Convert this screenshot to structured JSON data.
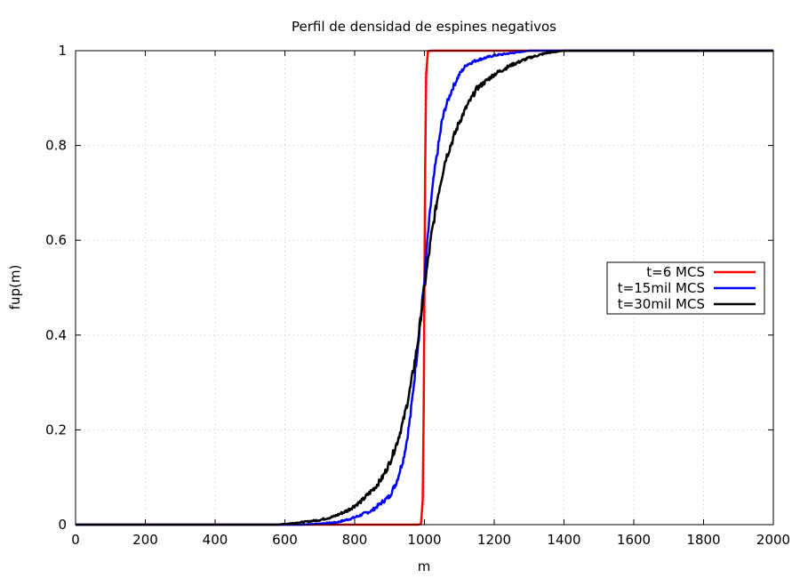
{
  "chart_data": {
    "type": "line",
    "title": "Perfil de densidad de espines negativos",
    "xlabel": "m",
    "ylabel": "fup(m)",
    "xlim": [
      0,
      2000
    ],
    "ylim": [
      0,
      1
    ],
    "x_ticks": [
      "0",
      "200",
      "400",
      "600",
      "800",
      "1000",
      "1200",
      "1400",
      "1600",
      "1800",
      "2000"
    ],
    "y_ticks": [
      "0",
      "0.2",
      "0.4",
      "0.6",
      "0.8",
      "1"
    ],
    "grid": true,
    "legend_position": "right",
    "series": [
      {
        "name": "t=6 MCS",
        "color": "#ff0000",
        "x": [
          0,
          980,
          990,
          995,
          998,
          1000,
          1002,
          1005,
          1010,
          1020,
          2000
        ],
        "y": [
          0,
          0,
          0.001,
          0.05,
          0.25,
          0.5,
          0.75,
          0.95,
          0.999,
          1,
          1
        ]
      },
      {
        "name": "t=15mil MCS",
        "color": "#0000ff",
        "x": [
          0,
          650,
          700,
          750,
          800,
          850,
          900,
          920,
          940,
          950,
          960,
          970,
          980,
          990,
          1000,
          1010,
          1020,
          1030,
          1040,
          1050,
          1060,
          1080,
          1100,
          1120,
          1150,
          1200,
          1250,
          1300,
          1350,
          1400,
          2000
        ],
        "y": [
          0,
          0,
          0.002,
          0.005,
          0.015,
          0.03,
          0.06,
          0.09,
          0.14,
          0.18,
          0.23,
          0.3,
          0.37,
          0.44,
          0.52,
          0.61,
          0.69,
          0.75,
          0.8,
          0.85,
          0.88,
          0.92,
          0.95,
          0.97,
          0.98,
          0.99,
          0.995,
          1,
          1,
          1,
          1
        ]
      },
      {
        "name": "t=30mil MCS",
        "color": "#000000",
        "x": [
          0,
          580,
          620,
          660,
          700,
          740,
          780,
          820,
          860,
          880,
          900,
          920,
          940,
          960,
          980,
          1000,
          1020,
          1040,
          1060,
          1080,
          1100,
          1120,
          1150,
          1200,
          1250,
          1300,
          1350,
          1400,
          1450,
          2000
        ],
        "y": [
          0,
          0,
          0.003,
          0.006,
          0.01,
          0.017,
          0.03,
          0.05,
          0.08,
          0.1,
          0.13,
          0.17,
          0.22,
          0.29,
          0.38,
          0.5,
          0.61,
          0.7,
          0.77,
          0.81,
          0.85,
          0.88,
          0.92,
          0.95,
          0.97,
          0.985,
          0.995,
          1,
          1,
          1
        ]
      }
    ]
  }
}
